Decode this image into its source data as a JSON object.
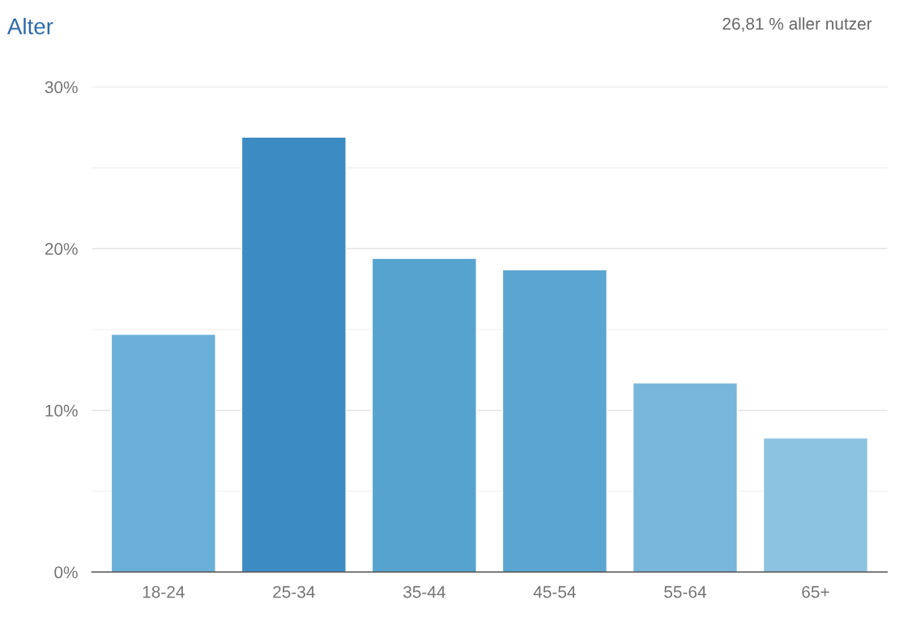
{
  "chart_data": {
    "type": "bar",
    "title": "Alter",
    "annotations": [
      "26,81 % aller nutzer"
    ],
    "categories": [
      "18-24",
      "25-34",
      "35-44",
      "45-54",
      "55-64",
      "65+"
    ],
    "values": [
      14.7,
      26.9,
      19.4,
      18.7,
      11.7,
      8.3
    ],
    "colors": [
      "#6aafd8",
      "#3d8bc3",
      "#57a3d0",
      "#5aa5d1",
      "#78b6db",
      "#8cc3e1"
    ],
    "ylim": [
      0,
      30
    ],
    "yticks": [
      {
        "value": 0,
        "label": "0%"
      },
      {
        "value": 5,
        "label": null
      },
      {
        "value": 10,
        "label": "10%"
      },
      {
        "value": 15,
        "label": null
      },
      {
        "value": 20,
        "label": "20%"
      },
      {
        "value": 25,
        "label": null
      },
      {
        "value": 30,
        "label": "30%"
      }
    ],
    "grid": "y"
  }
}
